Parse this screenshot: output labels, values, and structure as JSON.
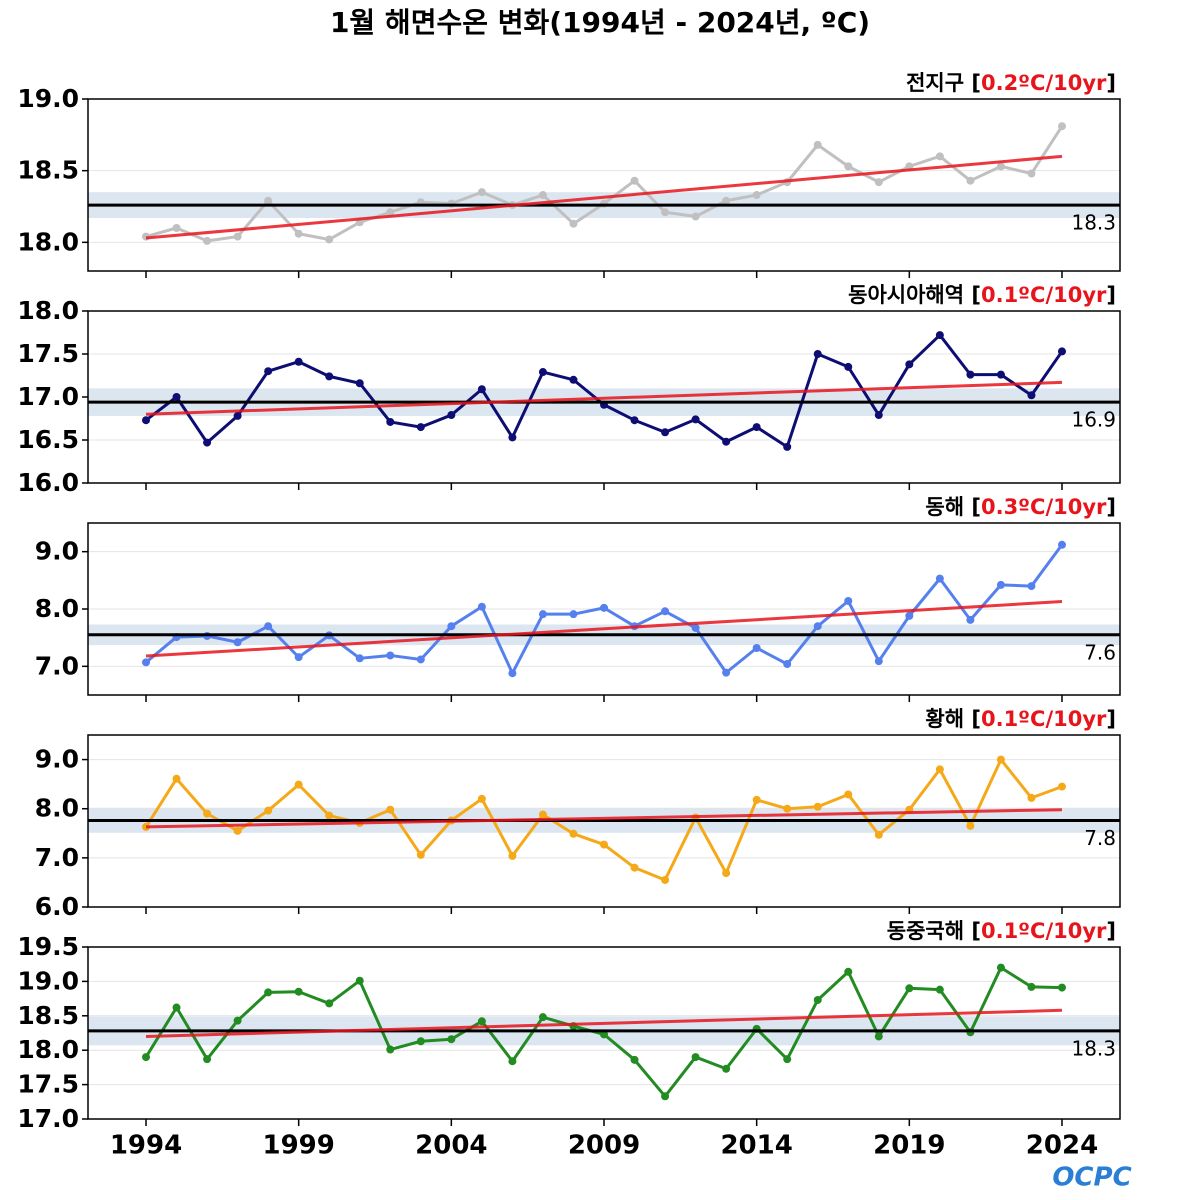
{
  "title": "1월 해면수온 변화(1994년 - 2024년, ºC)",
  "logo": "OCPC",
  "chart_data": [
    {
      "type": "line",
      "subtitle": {
        "region": "전지구",
        "open": "[",
        "rate": "0.2ºC/10yr",
        "close": "]"
      },
      "x": [
        1994,
        1995,
        1996,
        1997,
        1998,
        1999,
        2000,
        2001,
        2002,
        2003,
        2004,
        2005,
        2006,
        2007,
        2008,
        2009,
        2010,
        2011,
        2012,
        2013,
        2014,
        2015,
        2016,
        2017,
        2018,
        2019,
        2020,
        2021,
        2022,
        2023,
        2024
      ],
      "values": [
        18.04,
        18.1,
        18.01,
        18.04,
        18.29,
        18.06,
        18.02,
        18.14,
        18.21,
        18.28,
        18.27,
        18.35,
        18.26,
        18.33,
        18.13,
        18.27,
        18.43,
        18.21,
        18.18,
        18.29,
        18.33,
        18.42,
        18.68,
        18.53,
        18.42,
        18.53,
        18.6,
        18.43,
        18.53,
        18.48,
        18.81
      ],
      "color": "#c0c0c0",
      "trend": [
        18.03,
        18.6
      ],
      "mean": 18.26,
      "mean_label": "18.3",
      "band": [
        18.17,
        18.35
      ],
      "xlim": [
        1992.1,
        2025.9
      ],
      "xticks": [
        1994,
        1999,
        2004,
        2009,
        2014,
        2019,
        2024
      ],
      "ylim": [
        17.8,
        19.0
      ],
      "yticks": [
        {
          "value": 18,
          "label": "18.0"
        },
        18.5,
        {
          "value": 19,
          "label": "19.0"
        }
      ],
      "grid": true
    },
    {
      "type": "line",
      "subtitle": {
        "region": "동아시아해역",
        "open": "[",
        "rate": "0.1ºC/10yr",
        "close": "]"
      },
      "x": [
        1994,
        1995,
        1996,
        1997,
        1998,
        1999,
        2000,
        2001,
        2002,
        2003,
        2004,
        2005,
        2006,
        2007,
        2008,
        2009,
        2010,
        2011,
        2012,
        2013,
        2014,
        2015,
        2016,
        2017,
        2018,
        2019,
        2020,
        2021,
        2022,
        2023,
        2024
      ],
      "values": [
        16.73,
        17.0,
        16.47,
        16.78,
        17.3,
        17.41,
        17.24,
        17.16,
        16.71,
        16.65,
        16.79,
        17.09,
        16.53,
        17.29,
        17.2,
        16.91,
        16.73,
        16.59,
        16.74,
        16.48,
        16.65,
        16.42,
        17.5,
        17.35,
        16.79,
        17.38,
        17.72,
        17.26,
        17.26,
        17.02,
        17.53
      ],
      "color": "#0d0d73",
      "trend": [
        16.8,
        17.17
      ],
      "mean": 16.94,
      "mean_label": "16.9",
      "band": [
        16.78,
        17.1
      ],
      "xlim": [
        1992.1,
        2025.9
      ],
      "xticks": [
        1994,
        1999,
        2004,
        2009,
        2014,
        2019,
        2024
      ],
      "ylim": [
        16.0,
        18.0
      ],
      "yticks": [
        {
          "value": 16,
          "label": "16.0"
        },
        16.5,
        {
          "value": 17,
          "label": "17.0"
        },
        17.5,
        {
          "value": 18,
          "label": "18.0"
        }
      ],
      "grid": true
    },
    {
      "type": "line",
      "subtitle": {
        "region": "동해",
        "open": "[",
        "rate": "0.3ºC/10yr",
        "close": "]"
      },
      "x": [
        1994,
        1995,
        1996,
        1997,
        1998,
        1999,
        2000,
        2001,
        2002,
        2003,
        2004,
        2005,
        2006,
        2007,
        2008,
        2009,
        2010,
        2011,
        2012,
        2013,
        2014,
        2015,
        2016,
        2017,
        2018,
        2019,
        2020,
        2021,
        2022,
        2023,
        2024
      ],
      "values": [
        7.07,
        7.51,
        7.53,
        7.42,
        7.7,
        7.16,
        7.54,
        7.14,
        7.19,
        7.12,
        7.7,
        8.04,
        6.88,
        7.91,
        7.91,
        8.02,
        7.7,
        7.96,
        7.67,
        6.89,
        7.32,
        7.04,
        7.7,
        8.14,
        7.09,
        7.88,
        8.53,
        7.81,
        8.42,
        8.4,
        9.12
      ],
      "color": "#5580ee",
      "trend": [
        7.18,
        8.13
      ],
      "mean": 7.55,
      "mean_label": "7.6",
      "band": [
        7.37,
        7.73
      ],
      "xlim": [
        1992.1,
        2025.9
      ],
      "xticks": [
        1994,
        1999,
        2004,
        2009,
        2014,
        2019,
        2024
      ],
      "ylim": [
        6.5,
        9.5
      ],
      "yticks": [
        {
          "value": 7,
          "label": "7.0"
        },
        {
          "value": 8,
          "label": "8.0"
        },
        {
          "value": 9,
          "label": "9.0"
        }
      ],
      "grid": true
    },
    {
      "type": "line",
      "subtitle": {
        "region": "황해",
        "open": "[",
        "rate": "0.1ºC/10yr",
        "close": "]"
      },
      "x": [
        1994,
        1995,
        1996,
        1997,
        1998,
        1999,
        2000,
        2001,
        2002,
        2003,
        2004,
        2005,
        2006,
        2007,
        2008,
        2009,
        2010,
        2011,
        2012,
        2013,
        2014,
        2015,
        2016,
        2017,
        2018,
        2019,
        2020,
        2021,
        2022,
        2023,
        2024
      ],
      "values": [
        7.63,
        8.61,
        7.9,
        7.55,
        7.96,
        8.49,
        7.86,
        7.71,
        7.98,
        7.06,
        7.76,
        8.2,
        7.04,
        7.88,
        7.49,
        7.27,
        6.8,
        6.55,
        7.82,
        6.69,
        8.18,
        8.0,
        8.04,
        8.29,
        7.47,
        7.98,
        8.8,
        7.65,
        9.0,
        8.22,
        8.45
      ],
      "color": "#f5a818",
      "trend": [
        7.63,
        7.98
      ],
      "mean": 7.76,
      "mean_label": "7.8",
      "band": [
        7.51,
        8.02
      ],
      "xlim": [
        1992.1,
        2025.9
      ],
      "xticks": [
        1994,
        1999,
        2004,
        2009,
        2014,
        2019,
        2024
      ],
      "ylim": [
        6.0,
        9.5
      ],
      "yticks": [
        {
          "value": 6,
          "label": "6.0"
        },
        {
          "value": 7,
          "label": "7.0"
        },
        {
          "value": 8,
          "label": "8.0"
        },
        {
          "value": 9,
          "label": "9.0"
        }
      ],
      "grid": true
    },
    {
      "type": "line",
      "subtitle": {
        "region": "동중국해",
        "open": "[",
        "rate": "0.1ºC/10yr",
        "close": "]"
      },
      "x": [
        1994,
        1995,
        1996,
        1997,
        1998,
        1999,
        2000,
        2001,
        2002,
        2003,
        2004,
        2005,
        2006,
        2007,
        2008,
        2009,
        2010,
        2011,
        2012,
        2013,
        2014,
        2015,
        2016,
        2017,
        2018,
        2019,
        2020,
        2021,
        2022,
        2023,
        2024
      ],
      "values": [
        17.9,
        18.62,
        17.87,
        18.43,
        18.84,
        18.85,
        18.68,
        19.01,
        18.01,
        18.13,
        18.16,
        18.42,
        17.84,
        18.48,
        18.35,
        18.23,
        17.86,
        17.33,
        17.9,
        17.73,
        18.31,
        17.87,
        18.73,
        19.14,
        18.2,
        18.9,
        18.88,
        18.26,
        19.2,
        18.92,
        18.91
      ],
      "color": "#228b22",
      "trend": [
        18.2,
        18.58
      ],
      "mean": 18.28,
      "mean_label": "18.3",
      "band": [
        18.07,
        18.49
      ],
      "xlim": [
        1992.1,
        2025.9
      ],
      "xticks": [
        1994,
        1999,
        2004,
        2009,
        2014,
        2019,
        2024
      ],
      "ylim": [
        17.0,
        19.5
      ],
      "yticks": [
        {
          "value": 17,
          "label": "17.0"
        },
        17.5,
        {
          "value": 18,
          "label": "18.0"
        },
        18.5,
        {
          "value": 19,
          "label": "19.0"
        },
        19.5
      ],
      "grid": true,
      "x_labels": true
    }
  ]
}
